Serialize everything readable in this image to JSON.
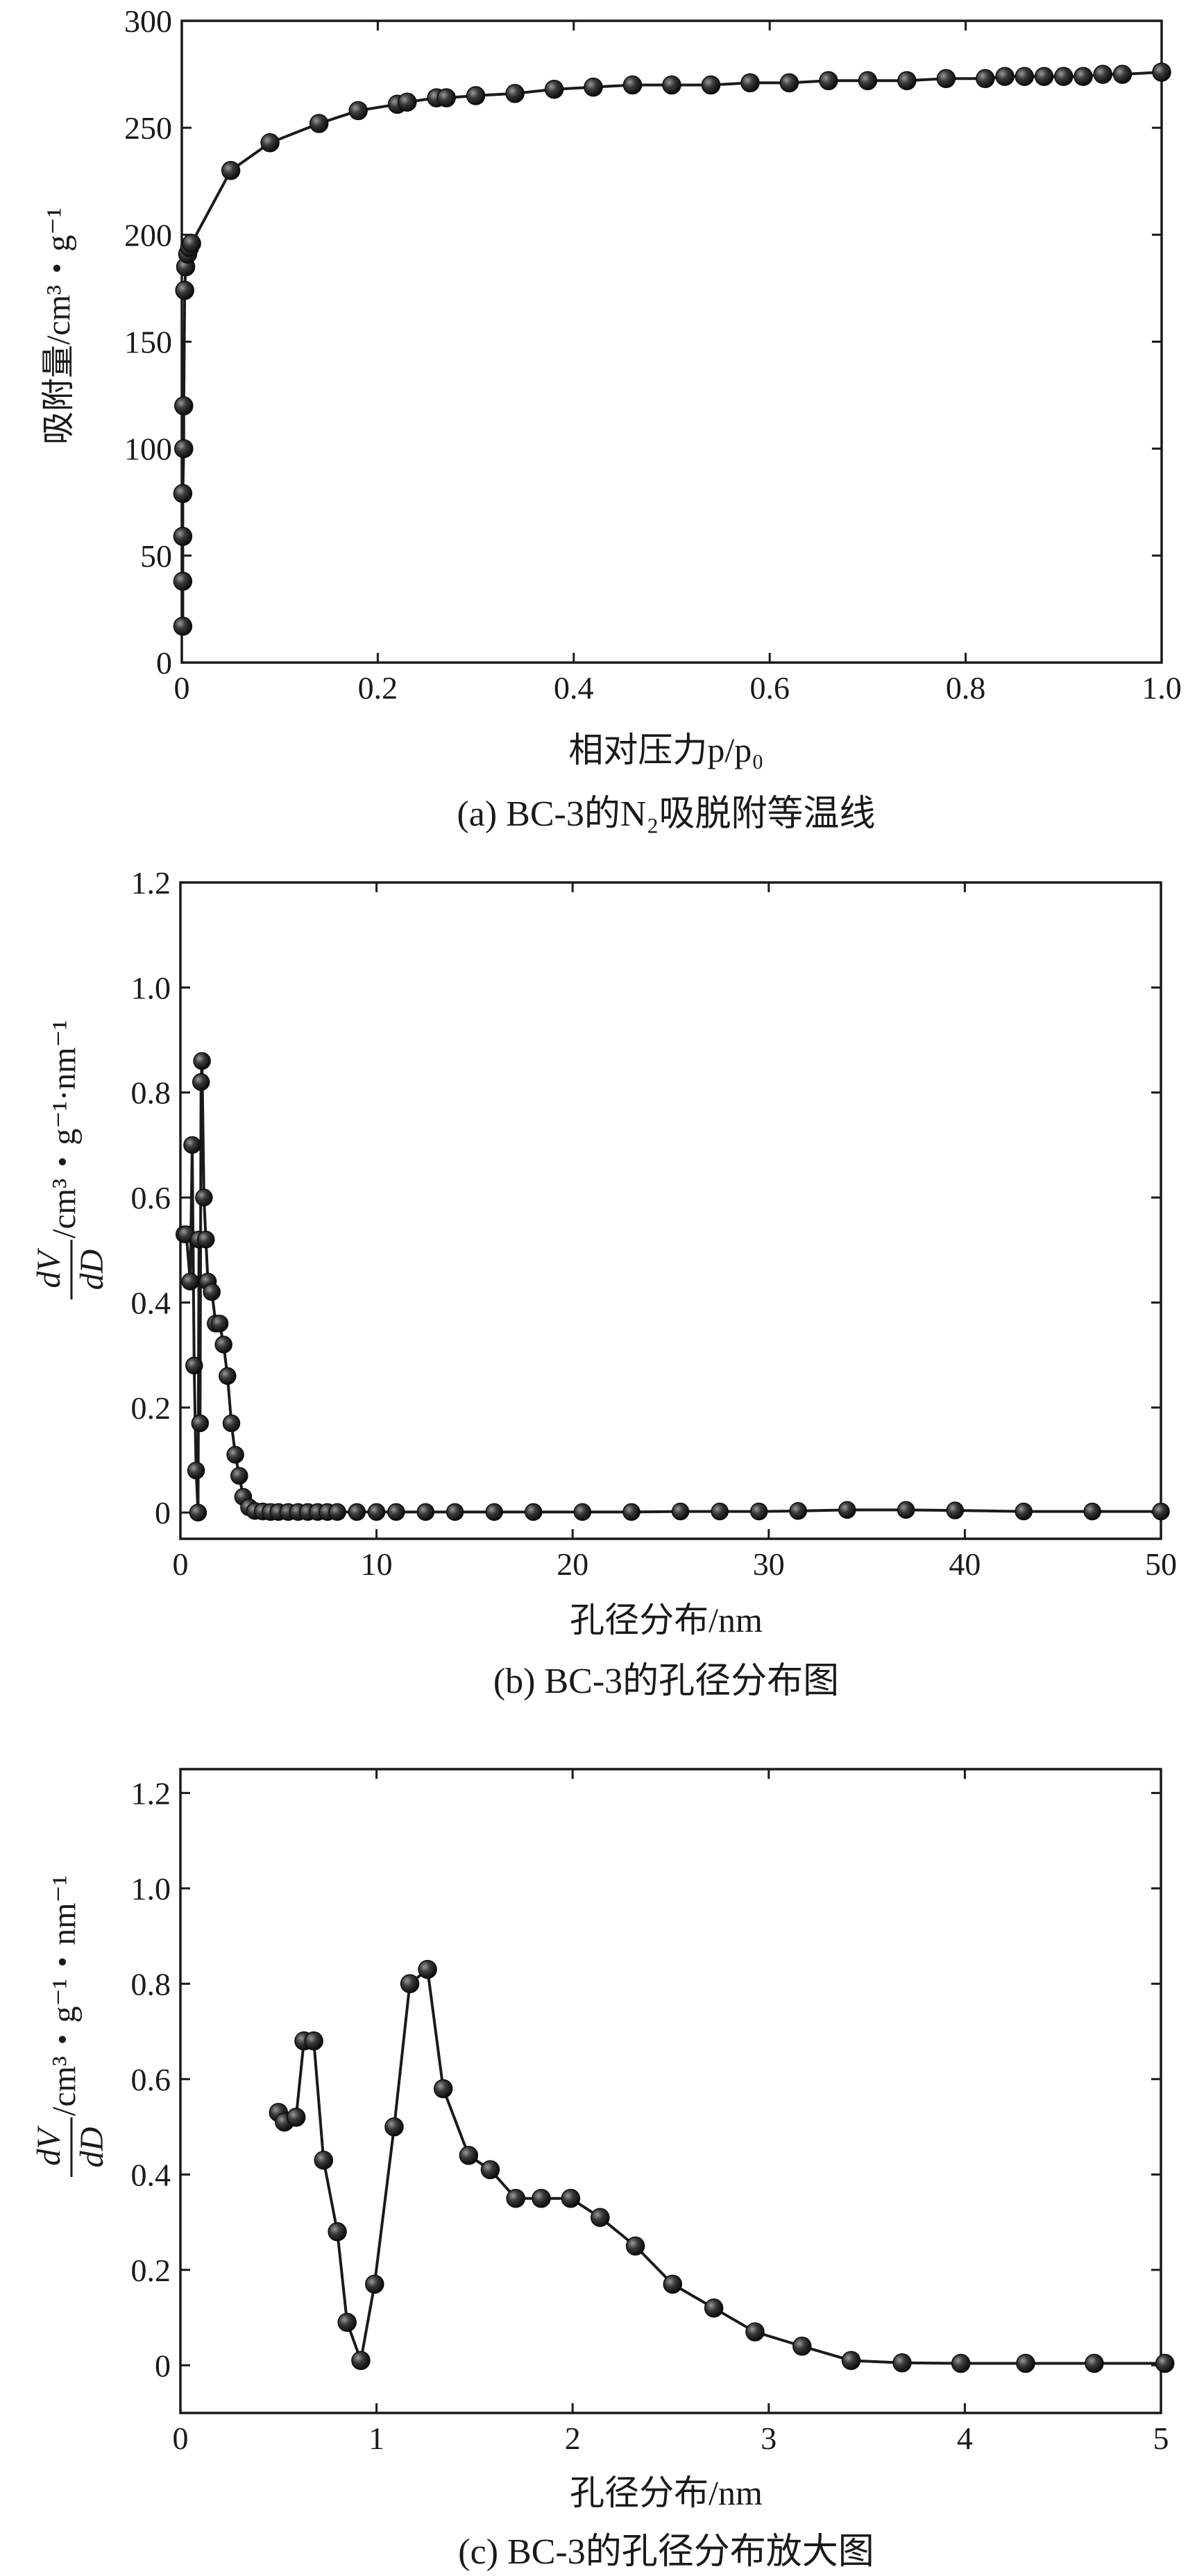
{
  "chart_data": [
    {
      "type": "line",
      "id": "a",
      "caption": "(a) BC-3的N₂吸脱附等温线",
      "xlabel": "相对压力p/p₀",
      "ylabel": "吸附量/cm³・g⁻¹",
      "xlim": [
        0,
        1.0
      ],
      "ylim": [
        0,
        300
      ],
      "xticks": [
        0,
        0.2,
        0.4,
        0.6,
        0.8,
        1.0
      ],
      "xtick_labels": [
        "0",
        "0.2",
        "0.4",
        "0.6",
        "0.8",
        "1.0"
      ],
      "yticks": [
        0,
        50,
        100,
        150,
        200,
        250,
        300
      ],
      "ytick_labels": [
        "0",
        "50",
        "100",
        "150",
        "200",
        "250",
        "300"
      ],
      "grid": false,
      "series": [
        {
          "x": [
            0.001,
            0.001,
            0.001,
            0.001,
            0.002,
            0.002,
            0.003,
            0.004,
            0.006,
            0.008,
            0.01,
            0.05,
            0.09,
            0.14,
            0.18,
            0.22,
            0.23,
            0.26,
            0.27,
            0.3,
            0.34,
            0.38,
            0.42,
            0.46,
            0.5,
            0.54,
            0.58,
            0.62,
            0.66,
            0.7,
            0.74,
            0.78,
            0.82,
            0.84,
            0.86,
            0.88,
            0.9,
            0.92,
            0.94,
            0.96,
            1.0
          ],
          "y": [
            17,
            38,
            59,
            79,
            100,
            120,
            174,
            185,
            191,
            194,
            196,
            230,
            243,
            252,
            258,
            261,
            262,
            264,
            264,
            265,
            266,
            268,
            269,
            270,
            270,
            270,
            271,
            271,
            272,
            272,
            272,
            273,
            273,
            274,
            274,
            274,
            274,
            274,
            275,
            275,
            276
          ]
        }
      ]
    },
    {
      "type": "line",
      "id": "b",
      "caption": "(b) BC-3的孔径分布图",
      "xlabel": "孔径分布/nm",
      "ylabel_num": "dV",
      "ylabel_den": "dD",
      "ylabel_unit": "/cm³・g⁻¹·nm⁻¹",
      "xlim": [
        0,
        50
      ],
      "ylim": [
        -0.05,
        1.2
      ],
      "xticks": [
        0,
        10,
        20,
        30,
        40,
        50
      ],
      "xtick_labels": [
        "0",
        "10",
        "20",
        "30",
        "40",
        "50"
      ],
      "yticks": [
        0,
        0.2,
        0.4,
        0.6,
        0.8,
        1.0,
        1.2
      ],
      "ytick_labels": [
        "0",
        "0.2",
        "0.4",
        "0.6",
        "0.8",
        "1.0",
        "1.2"
      ],
      "grid": false,
      "series": [
        {
          "x": [
            0.2,
            0.3,
            0.5,
            0.6,
            0.7,
            0.8,
            0.9,
            0.95,
            1.0,
            1.05,
            1.1,
            1.2,
            1.3,
            1.4,
            1.6,
            1.8,
            2.0,
            2.2,
            2.4,
            2.6,
            2.8,
            3.0,
            3.2,
            3.5,
            3.8,
            4.2,
            4.6,
            5.0,
            5.5,
            6.0,
            6.5,
            7.0,
            7.5,
            8.0,
            9.0,
            10.0,
            11.0,
            12.5,
            14.0,
            16.0,
            18.0,
            20.5,
            23.0,
            25.5,
            27.5,
            29.5,
            31.5,
            34.0,
            37.0,
            39.5,
            43.0,
            46.5,
            50.0
          ],
          "y": [
            0.53,
            0.53,
            0.44,
            0.7,
            0.28,
            0.08,
            0.0,
            0.52,
            0.17,
            0.82,
            0.86,
            0.6,
            0.52,
            0.44,
            0.42,
            0.36,
            0.36,
            0.32,
            0.26,
            0.17,
            0.11,
            0.07,
            0.03,
            0.01,
            0.003,
            0.002,
            0.001,
            0.001,
            0.001,
            0.001,
            0.001,
            0.001,
            0.001,
            0.001,
            0.001,
            0.001,
            0.001,
            0.001,
            0.001,
            0.001,
            0.001,
            0.001,
            0.001,
            0.002,
            0.002,
            0.002,
            0.003,
            0.005,
            0.005,
            0.004,
            0.002,
            0.002,
            0.002
          ]
        }
      ]
    },
    {
      "type": "line",
      "id": "c",
      "caption": "(c) BC-3的孔径分布放大图",
      "xlabel": "孔径分布/nm",
      "ylabel_num": "dV",
      "ylabel_den": "dD",
      "ylabel_unit": "/cm³・g⁻¹・nm⁻¹",
      "xlim": [
        0,
        5
      ],
      "ylim": [
        -0.1,
        1.25
      ],
      "xticks": [
        0,
        1,
        2,
        3,
        4,
        5
      ],
      "xtick_labels": [
        "0",
        "1",
        "2",
        "3",
        "4",
        "5"
      ],
      "yticks": [
        0,
        0.2,
        0.4,
        0.6,
        0.8,
        1.0,
        1.2
      ],
      "ytick_labels": [
        "0",
        "0.2",
        "0.4",
        "0.6",
        "0.8",
        "1.0",
        "1.2"
      ],
      "grid": false,
      "series": [
        {
          "x": [
            0.5,
            0.53,
            0.59,
            0.63,
            0.68,
            0.73,
            0.8,
            0.85,
            0.92,
            0.99,
            1.09,
            1.17,
            1.26,
            1.34,
            1.47,
            1.58,
            1.71,
            1.84,
            1.99,
            2.14,
            2.32,
            2.51,
            2.72,
            2.93,
            3.17,
            3.42,
            3.68,
            3.98,
            4.31,
            4.66,
            5.02
          ],
          "y": [
            0.53,
            0.51,
            0.52,
            0.68,
            0.68,
            0.43,
            0.28,
            0.09,
            0.01,
            0.17,
            0.5,
            0.8,
            0.83,
            0.58,
            0.44,
            0.41,
            0.35,
            0.35,
            0.35,
            0.31,
            0.25,
            0.17,
            0.12,
            0.07,
            0.04,
            0.01,
            0.005,
            0.004,
            0.004,
            0.004,
            0.004
          ]
        }
      ]
    }
  ]
}
